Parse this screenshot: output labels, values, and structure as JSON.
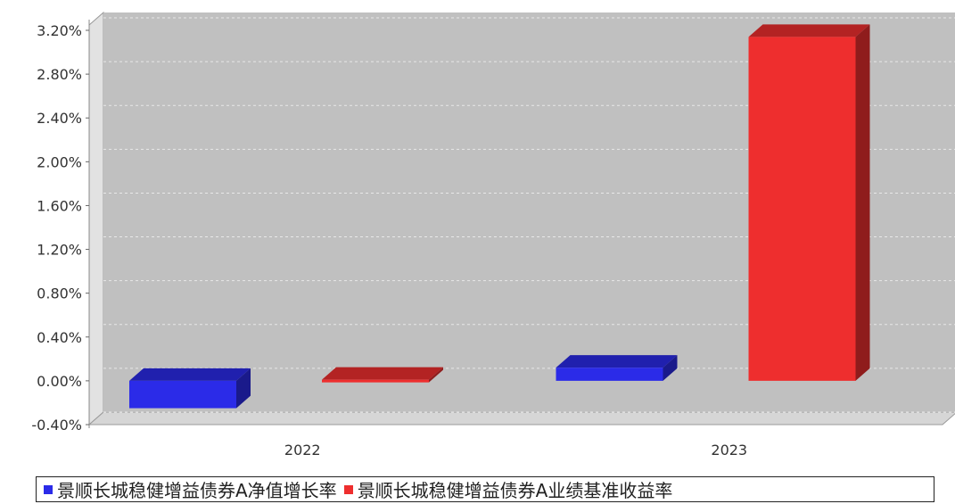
{
  "chart_data": {
    "type": "bar",
    "categories": [
      "2022",
      "2023"
    ],
    "series": [
      {
        "name": "景顺长城稳健增益债券A净值增长率",
        "values": [
          -0.25,
          0.12
        ],
        "color": "#2b2be8"
      },
      {
        "name": "景顺长城稳健增益债券A业绩基准收益率",
        "values": [
          0.01,
          3.14
        ],
        "color": "#ee2e2e"
      }
    ],
    "ylim": [
      -0.4,
      3.2
    ],
    "yticks": [
      "-0.40%",
      "0.00%",
      "0.40%",
      "0.80%",
      "1.20%",
      "1.60%",
      "2.00%",
      "2.40%",
      "2.80%",
      "3.20%"
    ],
    "ytick_values": [
      -0.4,
      0,
      0.4,
      0.8,
      1.2,
      1.6,
      2.0,
      2.4,
      2.8,
      3.2
    ],
    "grid": true,
    "legend_position": "bottom",
    "style": "3d"
  }
}
